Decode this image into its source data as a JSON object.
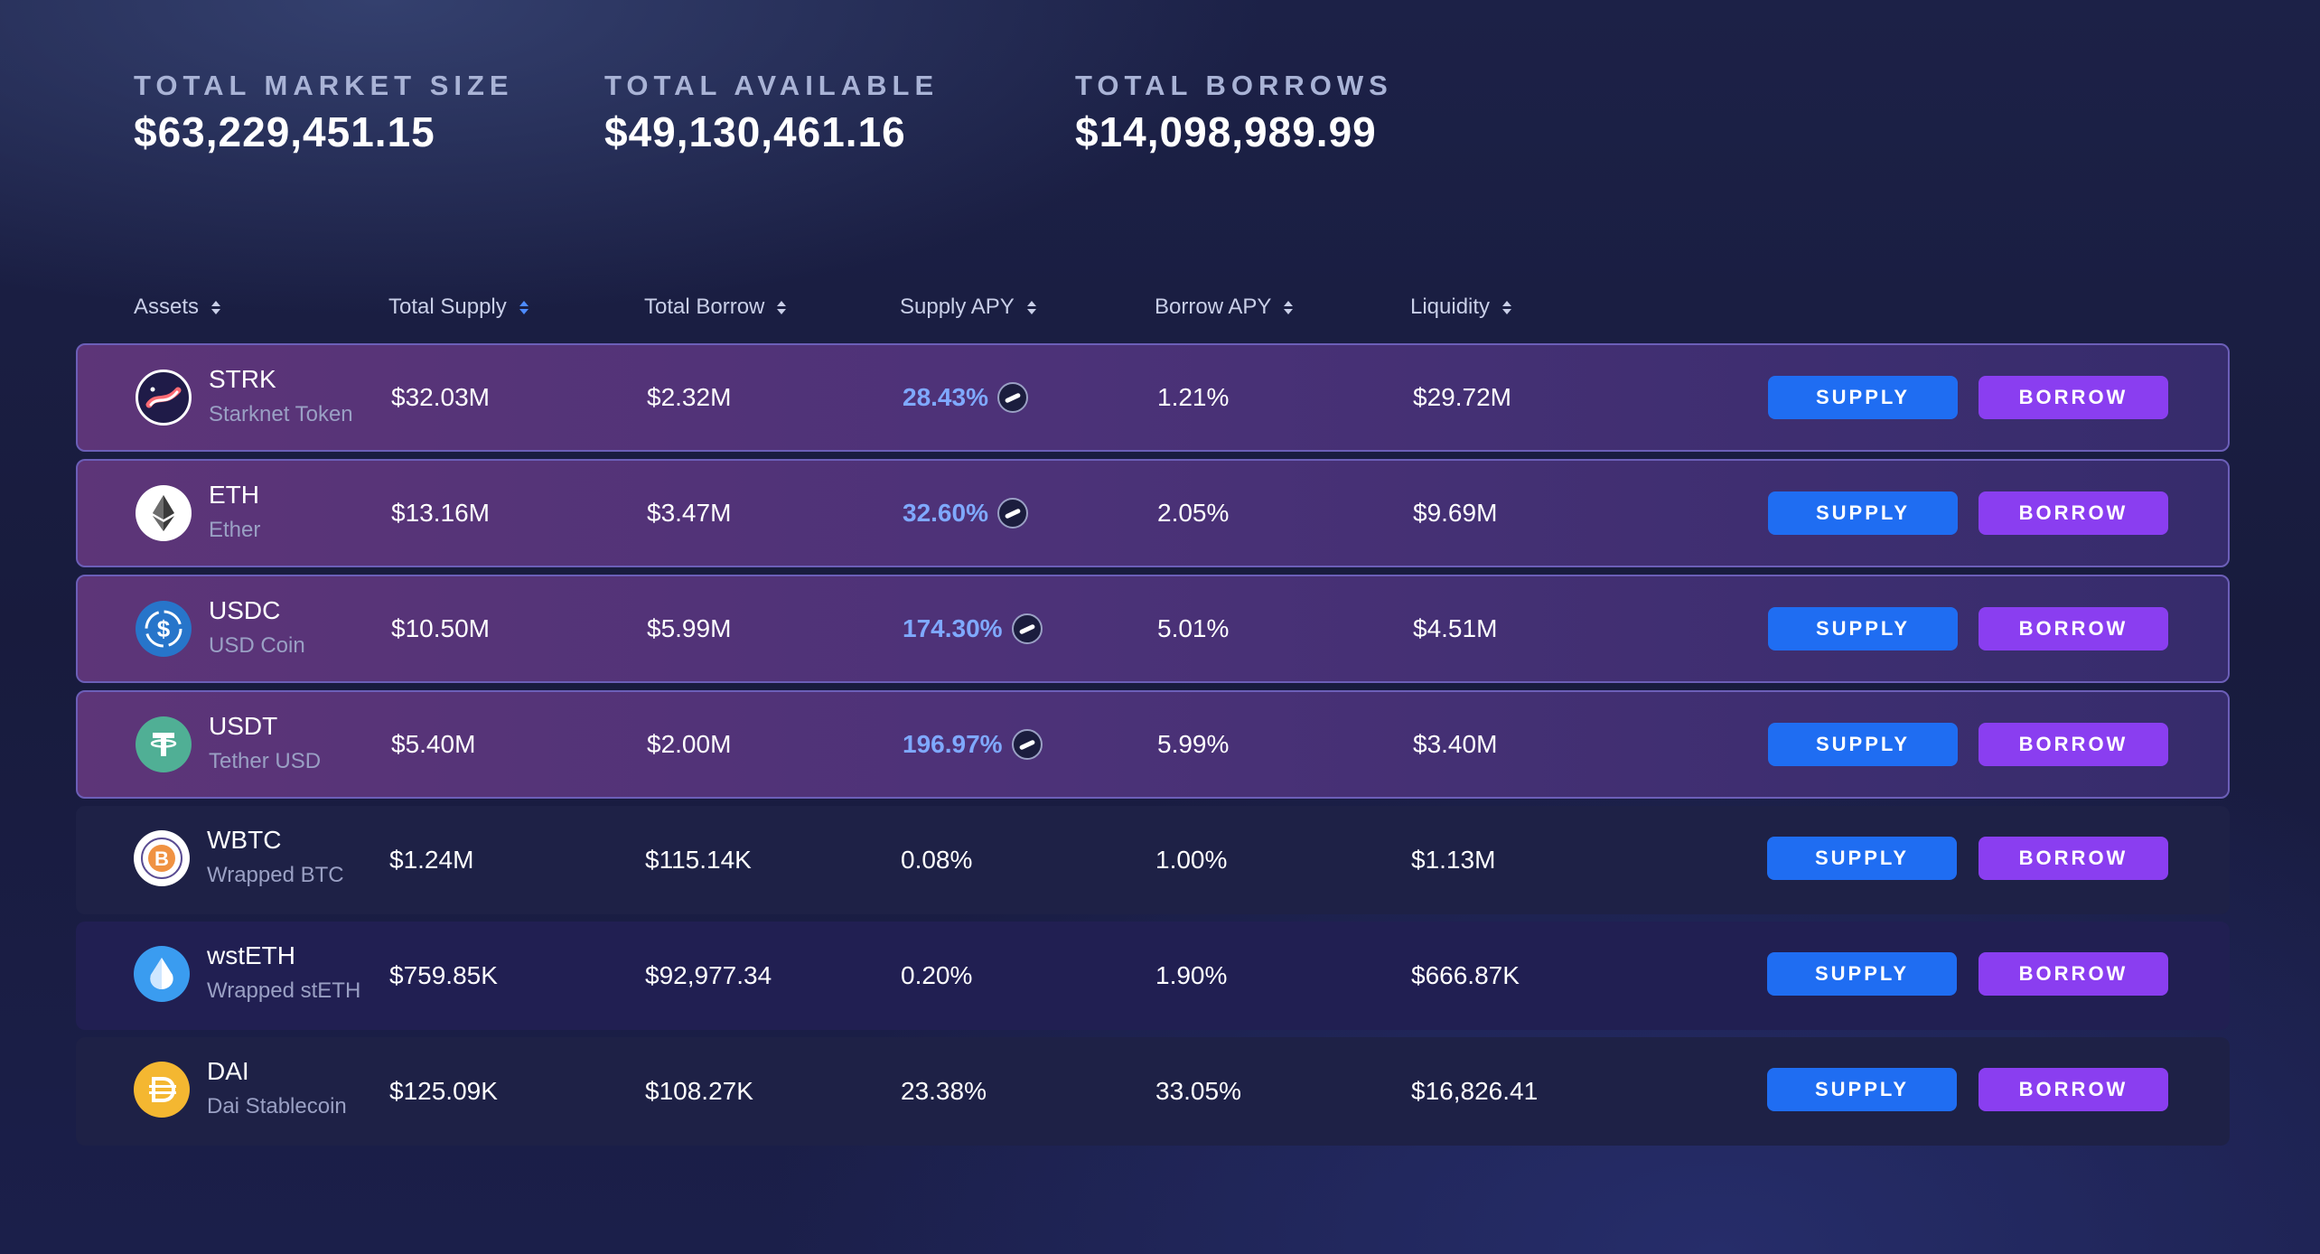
{
  "stats": [
    {
      "label": "TOTAL MARKET SIZE",
      "value": "$63,229,451.15"
    },
    {
      "label": "TOTAL AVAILABLE",
      "value": "$49,130,461.16"
    },
    {
      "label": "TOTAL BORROWS",
      "value": "$14,098,989.99"
    }
  ],
  "columns": {
    "assets": "Assets",
    "total_supply": "Total Supply",
    "total_borrow": "Total Borrow",
    "supply_apy": "Supply APY",
    "borrow_apy": "Borrow APY",
    "liquidity": "Liquidity"
  },
  "buttons": {
    "supply": "SUPPLY",
    "borrow": "BORROW"
  },
  "assets": [
    {
      "symbol": "STRK",
      "name": "Starknet Token",
      "supply": "$32.03M",
      "borrow": "$2.32M",
      "supply_apy": "28.43%",
      "borrow_apy": "1.21%",
      "liquidity": "$29.72M",
      "icon": "starknet-icon"
    },
    {
      "symbol": "ETH",
      "name": "Ether",
      "supply": "$13.16M",
      "borrow": "$3.47M",
      "supply_apy": "32.60%",
      "borrow_apy": "2.05%",
      "liquidity": "$9.69M",
      "icon": "ethereum-icon"
    },
    {
      "symbol": "USDC",
      "name": "USD Coin",
      "supply": "$10.50M",
      "borrow": "$5.99M",
      "supply_apy": "174.30%",
      "borrow_apy": "5.01%",
      "liquidity": "$4.51M",
      "icon": "usdc-icon"
    },
    {
      "symbol": "USDT",
      "name": "Tether USD",
      "supply": "$5.40M",
      "borrow": "$2.00M",
      "supply_apy": "196.97%",
      "borrow_apy": "5.99%",
      "liquidity": "$3.40M",
      "icon": "tether-icon"
    },
    {
      "symbol": "WBTC",
      "name": "Wrapped BTC",
      "supply": "$1.24M",
      "borrow": "$115.14K",
      "supply_apy": "0.08%",
      "borrow_apy": "1.00%",
      "liquidity": "$1.13M",
      "icon": "bitcoin-icon"
    },
    {
      "symbol": "wstETH",
      "name": "Wrapped stETH",
      "supply": "$759.85K",
      "borrow": "$92,977.34",
      "supply_apy": "0.20%",
      "borrow_apy": "1.90%",
      "liquidity": "$666.87K",
      "icon": "wsteth-icon"
    },
    {
      "symbol": "DAI",
      "name": "Dai Stablecoin",
      "supply": "$125.09K",
      "borrow": "$108.27K",
      "supply_apy": "23.38%",
      "borrow_apy": "33.05%",
      "liquidity": "$16,826.41",
      "icon": "dai-icon"
    }
  ],
  "colors": {
    "supply_button": "#1f6df2",
    "borrow_button": "#8a3ef0",
    "apy_highlight": "#7fa9ff",
    "sort_active": "#4d8bff"
  }
}
